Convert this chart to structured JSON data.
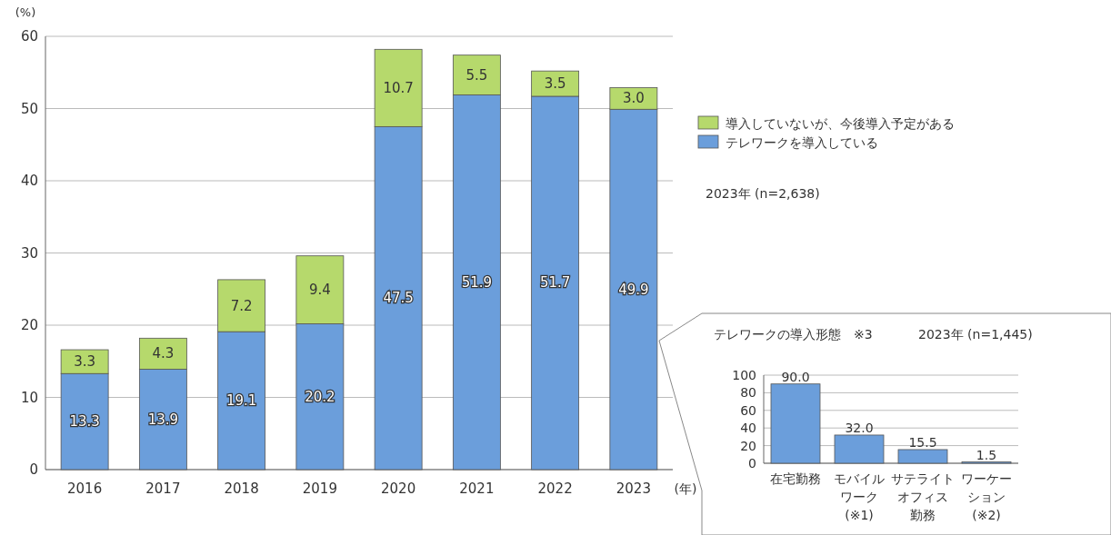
{
  "chart_data": [
    {
      "type": "bar",
      "stacked": true,
      "ylabel": "(%)",
      "xlabel": "(年)",
      "categories": [
        "2016",
        "2017",
        "2018",
        "2019",
        "2020",
        "2021",
        "2022",
        "2023"
      ],
      "series": [
        {
          "name": "テレワークを導入している",
          "color": "#6b9edb",
          "values": [
            13.3,
            13.9,
            19.1,
            20.2,
            47.5,
            51.9,
            51.7,
            49.9
          ]
        },
        {
          "name": "導入していないが、今後導入予定がある",
          "color": "#b6d96c",
          "values": [
            3.3,
            4.3,
            7.2,
            9.4,
            10.7,
            5.5,
            3.5,
            3.0
          ]
        }
      ],
      "value_labels": [
        [
          "13.3",
          "13.9",
          "19.1",
          "20.2",
          "47.5",
          "51.9",
          "51.7",
          "49.9"
        ],
        [
          "3.3",
          "4.3",
          "7.2",
          "9.4",
          "10.7",
          "5.5",
          "3.5",
          "3.0"
        ]
      ],
      "ylim": [
        0,
        60
      ],
      "yticks": [
        0,
        10,
        20,
        30,
        40,
        50,
        60
      ],
      "grid": "y",
      "legend": "right",
      "annotations": [
        "2023年 (n=2,638)"
      ]
    },
    {
      "type": "bar",
      "title": "テレワークの導入形態　※3",
      "categories": [
        "在宅勤務",
        "モバイルワーク(※1)",
        "サテライトオフィス勤務",
        "ワーケーション(※2)"
      ],
      "values": [
        90.0,
        32.0,
        15.5,
        1.5
      ],
      "value_labels": [
        "90.0",
        "32.0",
        "15.5",
        "1.5"
      ],
      "color": "#6b9edb",
      "ylim": [
        0,
        100
      ],
      "yticks": [
        0,
        20,
        40,
        60,
        80,
        100
      ],
      "grid": "y",
      "annotations": [
        "2023年 (n=1,445)"
      ]
    }
  ]
}
